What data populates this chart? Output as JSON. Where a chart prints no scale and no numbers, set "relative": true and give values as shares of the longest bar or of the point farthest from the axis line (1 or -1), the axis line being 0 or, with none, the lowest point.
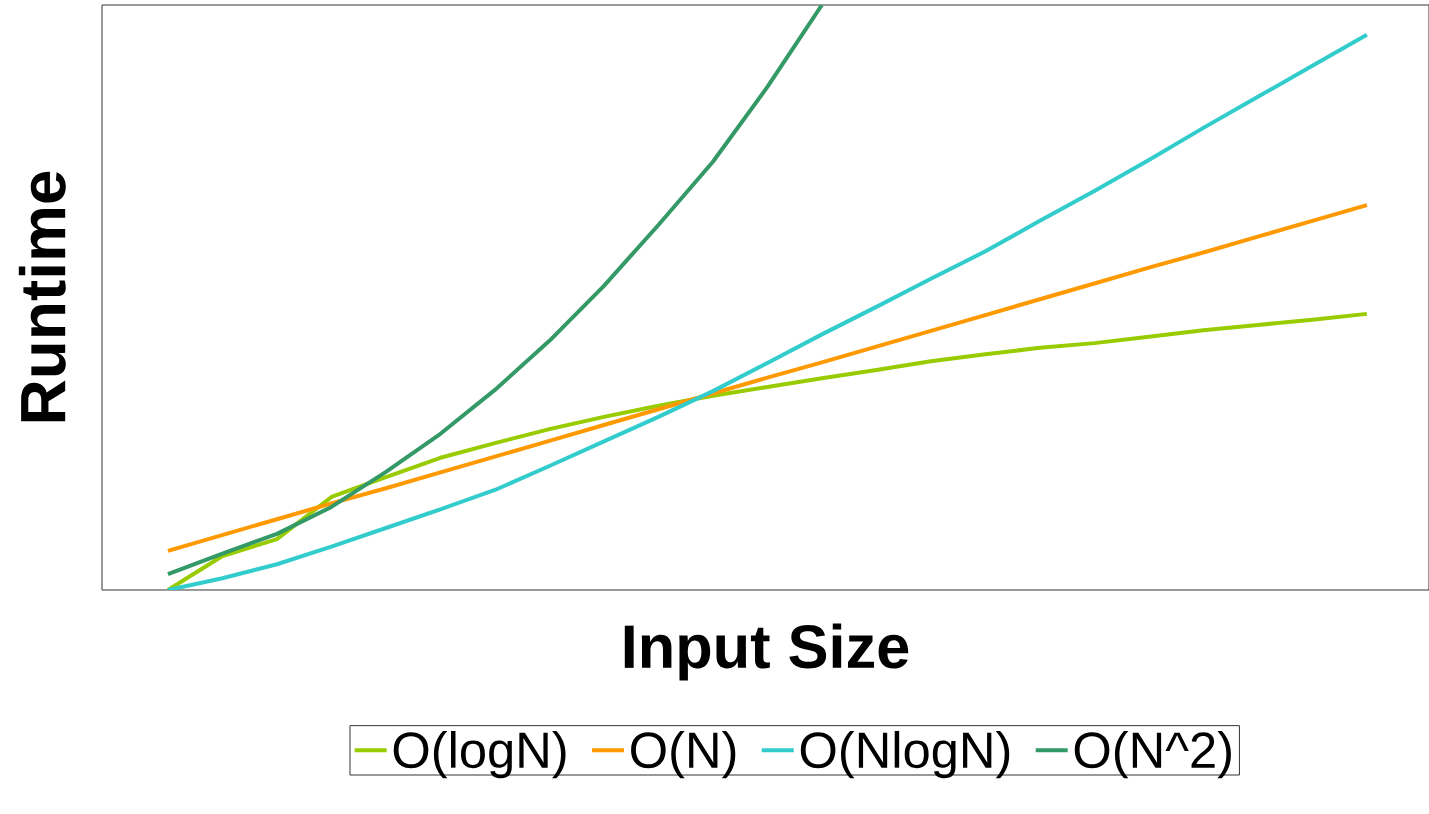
{
  "chart_data": {
    "type": "line",
    "xlabel": "Input Size",
    "ylabel": "Runtime",
    "relative": true,
    "tick_labels": false,
    "legend": "bottom",
    "categories": [
      null,
      null,
      null,
      null,
      null,
      null,
      null,
      null,
      null,
      null,
      null,
      null,
      null,
      null,
      null,
      null,
      null,
      null,
      null,
      null,
      null,
      null,
      null
    ],
    "series": [
      {
        "name": "O(logN)",
        "color": "#99cc00",
        "values": [
          0,
          0.058,
          0.087,
          0.159,
          0.193,
          0.226,
          0.251,
          0.275,
          0.296,
          0.315,
          0.332,
          0.347,
          0.362,
          0.376,
          0.391,
          0.403,
          0.414,
          0.422,
          0.433,
          0.444,
          0.453,
          0.462,
          0.472
        ]
      },
      {
        "name": "O(N)",
        "color": "#ff9900",
        "values": [
          0.067,
          0.094,
          0.121,
          0.148,
          0.174,
          0.201,
          0.228,
          0.255,
          0.282,
          0.309,
          0.336,
          0.363,
          0.389,
          0.416,
          0.443,
          0.47,
          0.497,
          0.524,
          0.551,
          0.577,
          0.604,
          0.631,
          0.658
        ]
      },
      {
        "name": "O(NlogN)",
        "color": "#33cccc",
        "values": [
          0,
          0.02,
          0.044,
          0.074,
          0.106,
          0.138,
          0.171,
          0.212,
          0.254,
          0.296,
          0.34,
          0.388,
          0.437,
          0.484,
          0.532,
          0.579,
          0.631,
          0.682,
          0.735,
          0.79,
          0.843,
          0.896,
          0.949
        ]
      },
      {
        "name": "O(N^2)",
        "color": "#339966",
        "values": [
          0.027,
          0.062,
          0.096,
          0.142,
          0.202,
          0.267,
          0.342,
          0.426,
          0.52,
          0.624,
          0.732,
          0.86,
          1.0,
          null,
          null,
          null,
          null,
          null,
          null,
          null,
          null,
          null,
          null
        ]
      }
    ]
  }
}
